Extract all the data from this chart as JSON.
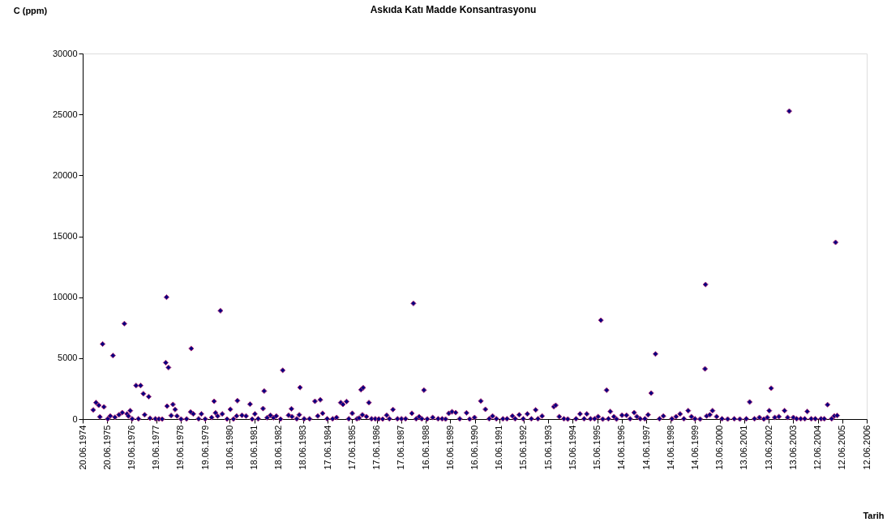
{
  "chart_data": {
    "type": "scatter",
    "title": "Askıda Katı Madde Konsantrasyonu",
    "ylabel": "C (ppm)",
    "xlabel": "Tarih",
    "x": [
      "1974-11-24",
      "1975-01-04",
      "1975-02-14",
      "1975-03-03",
      "1975-04-13",
      "1975-05-03",
      "1975-06-29",
      "1975-08-05",
      "1975-09-14",
      "1975-10-13",
      "1975-12-12",
      "1976-01-30",
      "1976-03-02",
      "1976-04-11",
      "1976-05-01",
      "1976-05-29",
      "1976-06-26",
      "1976-08-23",
      "1976-09-28",
      "1976-10-30",
      "1976-12-10",
      "1976-12-29",
      "1977-02-28",
      "1977-03-19",
      "1977-06-08",
      "1977-07-30",
      "1977-09-17",
      "1977-11-08",
      "1977-11-20",
      "1977-11-28",
      "1977-12-19",
      "1978-01-28",
      "1978-02-24",
      "1978-03-28",
      "1978-04-25",
      "1978-06-25",
      "1978-09-15",
      "1978-11-14",
      "1978-11-23",
      "1978-12-24",
      "1979-03-13",
      "1979-04-23",
      "1979-06-19",
      "1979-09-24",
      "1979-10-30",
      "1979-11-20",
      "1979-12-21",
      "1980-02-01",
      "1980-02-28",
      "1980-05-10",
      "1980-06-28",
      "1980-08-12",
      "1980-09-29",
      "1980-10-11",
      "1980-12-18",
      "1981-02-17",
      "1981-04-17",
      "1981-05-19",
      "1981-06-28",
      "1981-08-16",
      "1981-10-28",
      "1981-11-14",
      "1981-12-27",
      "1982-02-15",
      "1982-04-02",
      "1982-05-13",
      "1982-07-16",
      "1982-08-17",
      "1982-11-12",
      "1982-12-25",
      "1983-01-03",
      "1983-03-14",
      "1983-04-20",
      "1983-05-02",
      "1983-07-02",
      "1983-09-21",
      "1983-12-10",
      "1984-01-21",
      "1984-02-28",
      "1984-04-02",
      "1984-06-09",
      "1984-08-29",
      "1984-10-28",
      "1984-12-28",
      "1985-01-30",
      "1985-03-25",
      "1985-04-27",
      "1985-06-18",
      "1985-08-26",
      "1985-09-28",
      "1985-10-26",
      "1985-11-16",
      "1985-11-28",
      "1986-01-16",
      "1986-02-21",
      "1986-04-01",
      "1986-05-27",
      "1986-07-18",
      "1986-09-14",
      "1986-11-13",
      "1986-12-23",
      "1987-02-14",
      "1987-04-22",
      "1987-06-21",
      "1987-08-21",
      "1987-11-23",
      "1987-12-16",
      "1988-01-26",
      "1988-03-10",
      "1988-04-19",
      "1988-05-21",
      "1988-07-09",
      "1988-09-28",
      "1988-12-18",
      "1989-02-16",
      "1989-04-08",
      "1989-05-26",
      "1989-07-13",
      "1989-09-06",
      "1989-11-05",
      "1990-02-14",
      "1990-04-02",
      "1990-06-14",
      "1990-09-15",
      "1990-11-22",
      "1991-01-18",
      "1991-03-09",
      "1991-05-05",
      "1991-08-10",
      "1991-10-10",
      "1991-12-30",
      "1992-02-09",
      "1992-04-09",
      "1992-06-08",
      "1992-08-08",
      "1992-10-07",
      "1992-12-10",
      "1993-01-13",
      "1993-03-16",
      "1993-09-07",
      "1993-10-05",
      "1993-11-26",
      "1994-02-04",
      "1994-04-03",
      "1994-08-03",
      "1994-10-02",
      "1994-12-02",
      "1995-01-11",
      "1995-03-07",
      "1995-05-07",
      "1995-06-28",
      "1995-08-09",
      "1995-09-06",
      "1995-11-02",
      "1995-11-29",
      "1995-12-27",
      "1996-02-19",
      "1996-03-29",
      "1996-06-18",
      "1996-08-25",
      "1996-10-17",
      "1996-12-17",
      "1997-01-26",
      "1997-03-17",
      "1997-05-25",
      "1997-07-12",
      "1997-08-27",
      "1997-10-30",
      "1997-12-29",
      "1998-02-25",
      "1998-07-02",
      "1998-09-01",
      "1998-11-01",
      "1998-12-27",
      "1999-03-01",
      "1999-04-18",
      "1999-06-10",
      "1999-08-26",
      "1999-11-07",
      "1999-11-15",
      "1999-12-01",
      "2000-01-18",
      "2000-02-27",
      "2000-04-27",
      "2000-07-17",
      "2000-10-10",
      "2001-01-16",
      "2001-04-09",
      "2001-07-14",
      "2001-09-02",
      "2001-11-13",
      "2002-01-25",
      "2002-04-02",
      "2002-05-24",
      "2002-06-21",
      "2002-07-20",
      "2002-09-11",
      "2002-11-11",
      "2003-02-04",
      "2003-03-22",
      "2003-04-15",
      "2003-06-15",
      "2003-08-03",
      "2003-10-03",
      "2003-12-02",
      "2004-01-08",
      "2004-03-08",
      "2004-05-07",
      "2004-08-01",
      "2004-09-18",
      "2004-11-05",
      "2005-01-05",
      "2005-02-14",
      "2005-03-05",
      "2005-03-29"
    ],
    "series": [
      {
        "color": "#000080",
        "values": [
          750,
          1350,
          1130,
          180,
          6160,
          1000,
          20,
          250,
          5210,
          150,
          350,
          530,
          7830,
          420,
          250,
          690,
          20,
          2750,
          20,
          2750,
          2080,
          350,
          1840,
          70,
          20,
          10,
          0,
          4630,
          10000,
          1060,
          4230,
          290,
          1200,
          780,
          250,
          0,
          10,
          580,
          5790,
          420,
          20,
          420,
          10,
          130,
          1460,
          510,
          250,
          8890,
          420,
          0,
          800,
          0,
          250,
          1510,
          310,
          250,
          1220,
          0,
          420,
          20,
          860,
          2300,
          110,
          310,
          110,
          250,
          0,
          4000,
          310,
          840,
          200,
          20,
          350,
          2590,
          20,
          20,
          1460,
          250,
          1580,
          470,
          20,
          20,
          130,
          1350,
          1200,
          1440,
          20,
          470,
          20,
          90,
          2410,
          350,
          2570,
          200,
          1350,
          20,
          20,
          10,
          0,
          310,
          20,
          780,
          20,
          20,
          20,
          470,
          9490,
          20,
          200,
          20,
          2370,
          10,
          130,
          20,
          20,
          0,
          470,
          600,
          530,
          20,
          510,
          0,
          130,
          1480,
          800,
          20,
          250,
          20,
          20,
          20,
          250,
          20,
          350,
          20,
          420,
          20,
          750,
          20,
          250,
          1020,
          1130,
          200,
          20,
          0,
          20,
          420,
          20,
          420,
          20,
          20,
          200,
          8110,
          0,
          2370,
          20,
          620,
          200,
          0,
          310,
          310,
          20,
          530,
          200,
          20,
          20,
          350,
          2130,
          5340,
          20,
          250,
          20,
          200,
          420,
          20,
          690,
          200,
          20,
          0,
          4120,
          11040,
          250,
          350,
          690,
          200,
          20,
          0,
          20,
          0,
          20,
          1400,
          20,
          130,
          0,
          130,
          690,
          2530,
          130,
          200,
          690,
          130,
          25270,
          130,
          20,
          20,
          20,
          620,
          20,
          20,
          20,
          20,
          1180,
          20,
          250,
          14500,
          290
        ]
      }
    ],
    "xlim": [
      "1974-06-20",
      "2006-06-12"
    ],
    "xticks": [
      {
        "value": "1974-06-20",
        "label": "20.06.1974"
      },
      {
        "value": "1975-06-20",
        "label": "20.06.1975"
      },
      {
        "value": "1976-06-19",
        "label": "19.06.1976"
      },
      {
        "value": "1977-06-19",
        "label": "19.06.1977"
      },
      {
        "value": "1978-06-19",
        "label": "19.06.1978"
      },
      {
        "value": "1979-06-19",
        "label": "19.06.1979"
      },
      {
        "value": "1980-06-18",
        "label": "18.06.1980"
      },
      {
        "value": "1981-06-18",
        "label": "18.06.1981"
      },
      {
        "value": "1982-06-18",
        "label": "18.06.1982"
      },
      {
        "value": "1983-06-18",
        "label": "18.06.1983"
      },
      {
        "value": "1984-06-17",
        "label": "17.06.1984"
      },
      {
        "value": "1985-06-17",
        "label": "17.06.1985"
      },
      {
        "value": "1986-06-17",
        "label": "17.06.1986"
      },
      {
        "value": "1987-06-17",
        "label": "17.06.1987"
      },
      {
        "value": "1988-06-16",
        "label": "16.06.1988"
      },
      {
        "value": "1989-06-16",
        "label": "16.06.1989"
      },
      {
        "value": "1990-06-16",
        "label": "16.06.1990"
      },
      {
        "value": "1991-06-16",
        "label": "16.06.1991"
      },
      {
        "value": "1992-06-15",
        "label": "15.06.1992"
      },
      {
        "value": "1993-06-15",
        "label": "15.06.1993"
      },
      {
        "value": "1994-06-15",
        "label": "15.06.1994"
      },
      {
        "value": "1995-06-15",
        "label": "15.06.1995"
      },
      {
        "value": "1996-06-14",
        "label": "14.06.1996"
      },
      {
        "value": "1997-06-14",
        "label": "14.06.1997"
      },
      {
        "value": "1998-06-14",
        "label": "14.06.1998"
      },
      {
        "value": "1999-06-14",
        "label": "14.06.1999"
      },
      {
        "value": "2000-06-13",
        "label": "13.06.2000"
      },
      {
        "value": "2001-06-13",
        "label": "13.06.2001"
      },
      {
        "value": "2002-06-13",
        "label": "13.06.2002"
      },
      {
        "value": "2003-06-13",
        "label": "13.06.2003"
      },
      {
        "value": "2004-06-12",
        "label": "12.06.2004"
      },
      {
        "value": "2005-06-12",
        "label": "12.06.2005"
      },
      {
        "value": "2006-06-12",
        "label": "12.06.2006"
      }
    ],
    "ylim": [
      0,
      30000
    ],
    "yticks": [
      0,
      5000,
      10000,
      15000,
      20000,
      25000,
      30000
    ],
    "marker": "diamond",
    "grid": false,
    "legend": false
  }
}
